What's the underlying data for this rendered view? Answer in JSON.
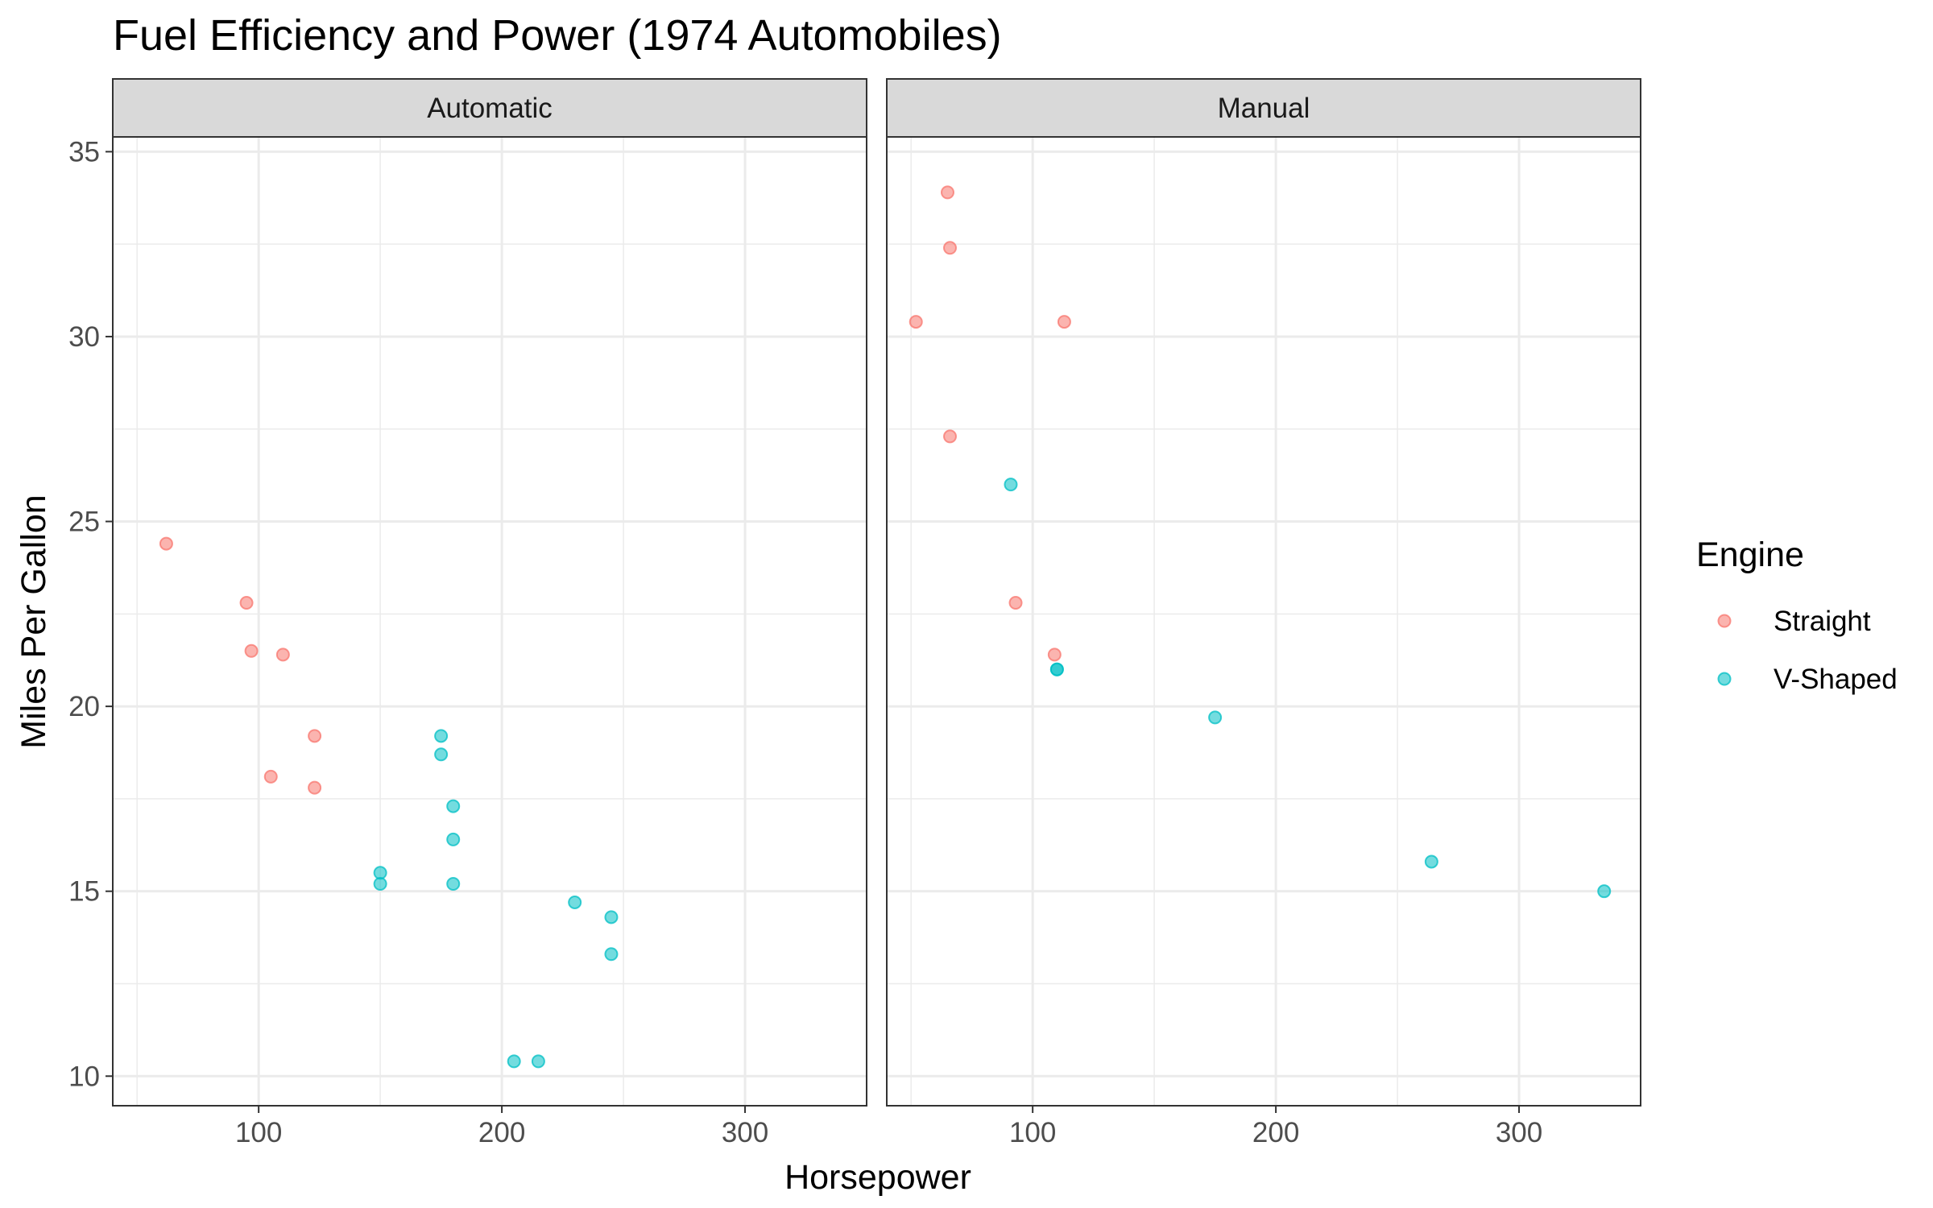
{
  "chart_data": {
    "type": "scatter",
    "title": "Fuel Efficiency and Power (1974 Automobiles)",
    "xlabel": "Horsepower",
    "ylabel": "Miles Per Gallon",
    "xlim": [
      40,
      350
    ],
    "ylim": [
      9.2,
      35.4
    ],
    "x_ticks": [
      100,
      200,
      300
    ],
    "y_ticks": [
      10,
      15,
      20,
      25,
      30,
      35
    ],
    "grid": true,
    "legend": {
      "title": "Engine",
      "placement": "right",
      "entries": [
        {
          "name": "Straight",
          "color": "#F8766D"
        },
        {
          "name": "V-Shaped",
          "color": "#00BFC4"
        }
      ]
    },
    "facets": [
      {
        "label": "Automatic",
        "series": [
          {
            "name": "Straight",
            "points": [
              [
                62,
                24.4
              ],
              [
                95,
                22.8
              ],
              [
                97,
                21.5
              ],
              [
                110,
                21.4
              ],
              [
                123,
                19.2
              ],
              [
                105,
                18.1
              ],
              [
                123,
                17.8
              ]
            ]
          },
          {
            "name": "V-Shaped",
            "points": [
              [
                175,
                19.2
              ],
              [
                175,
                18.7
              ],
              [
                180,
                17.3
              ],
              [
                180,
                16.4
              ],
              [
                150,
                15.5
              ],
              [
                150,
                15.2
              ],
              [
                180,
                15.2
              ],
              [
                230,
                14.7
              ],
              [
                245,
                14.3
              ],
              [
                245,
                13.3
              ],
              [
                205,
                10.4
              ],
              [
                215,
                10.4
              ]
            ]
          }
        ]
      },
      {
        "label": "Manual",
        "series": [
          {
            "name": "Straight",
            "points": [
              [
                65,
                33.9
              ],
              [
                66,
                32.4
              ],
              [
                52,
                30.4
              ],
              [
                113,
                30.4
              ],
              [
                66,
                27.3
              ],
              [
                93,
                22.8
              ],
              [
                109,
                21.4
              ]
            ]
          },
          {
            "name": "V-Shaped",
            "points": [
              [
                91,
                26.0
              ],
              [
                110,
                21.0
              ],
              [
                110,
                21.0
              ],
              [
                175,
                19.7
              ],
              [
                264,
                15.8
              ],
              [
                335,
                15.0
              ]
            ]
          }
        ]
      }
    ]
  }
}
